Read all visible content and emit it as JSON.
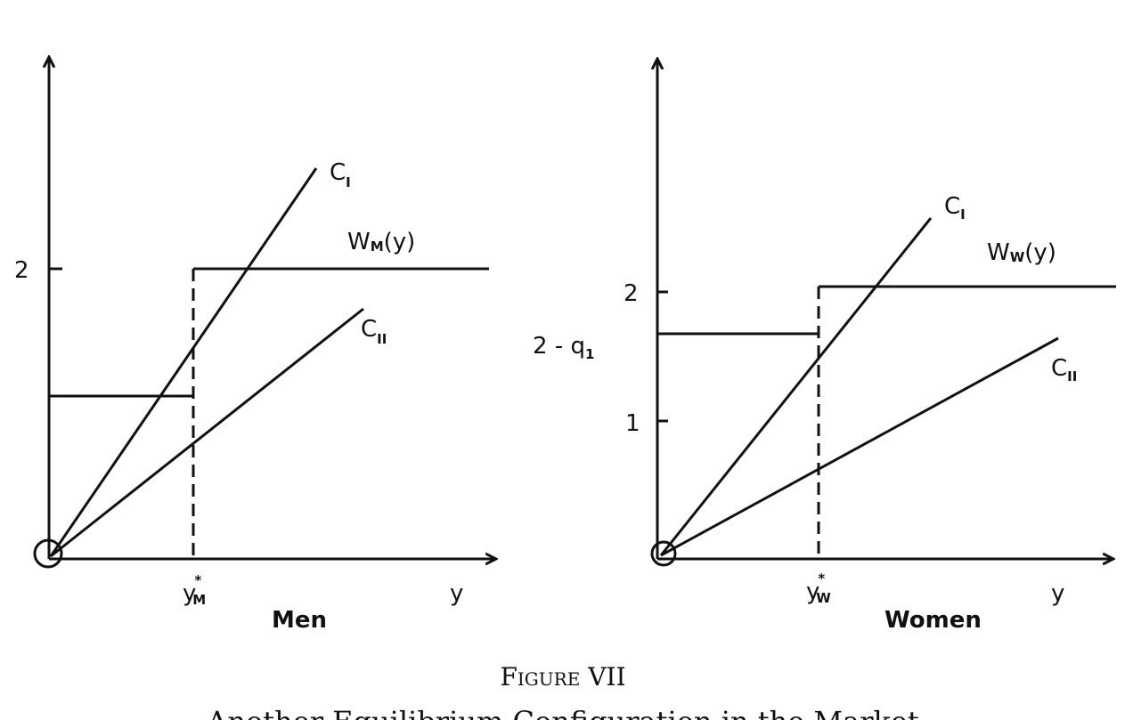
{
  "figure": {
    "caption": "Figure VII",
    "subtitle": "Another Equilibrium Configuration in the Market"
  },
  "panels": [
    {
      "title": "Men",
      "x_label": "y",
      "y_ticks": [
        {
          "label": "2",
          "value": 2
        }
      ],
      "threshold_label_main": "y",
      "threshold_label_sup": "*",
      "threshold_label_sub": "M",
      "wage_label_main": "W",
      "wage_label_sub": "M",
      "wage_label_arg": "(y)",
      "cost_I_main": "C",
      "cost_I_sub": "I",
      "cost_II_main": "C",
      "cost_II_sub": "II",
      "low_wage_value": 1
    },
    {
      "title": "Women",
      "x_label": "y",
      "y_ticks": [
        {
          "label": "2",
          "value": 2
        },
        {
          "label": "1",
          "value": 1
        },
        {
          "label": "2 - q",
          "sub": "1"
        }
      ],
      "threshold_label_main": "y",
      "threshold_label_sup": "*",
      "threshold_label_sub": "W",
      "wage_label_main": "W",
      "wage_label_sub": "W",
      "wage_label_arg": "(y)",
      "cost_I_main": "C",
      "cost_I_sub": "I",
      "cost_II_main": "C",
      "cost_II_sub": "II"
    }
  ]
}
